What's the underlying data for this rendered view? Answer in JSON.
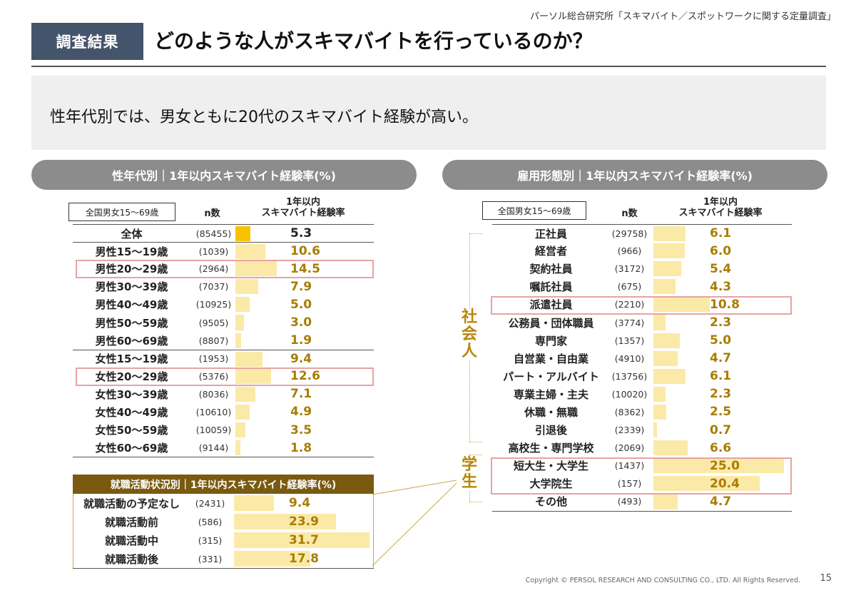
{
  "source": "パーソル総合研究所「スキマバイト／スポットワークに関する定量調査」",
  "tag": "調査結果",
  "headline": "どのような人がスキマバイトを行っているのか？",
  "summary": "性年代別では、男女ともに20代のスキマバイト経験が高い。",
  "left": {
    "pill": "性年代別｜1年以内スキマバイト経験率(%)",
    "region": "全国男女15～69歳",
    "n_header": "n数",
    "rate_header": "1年以内\nスキマバイト経験率",
    "rows": [
      {
        "label": "全体",
        "n": "(85455)",
        "value": "5.3"
      },
      {
        "label": "男性15～19歳",
        "n": "(1039)",
        "value": "10.6"
      },
      {
        "label": "男性20～29歳",
        "n": "(2964)",
        "value": "14.5"
      },
      {
        "label": "男性30～39歳",
        "n": "(7037)",
        "value": "7.9"
      },
      {
        "label": "男性40～49歳",
        "n": "(10925)",
        "value": "5.0"
      },
      {
        "label": "男性50～59歳",
        "n": "(9505)",
        "value": "3.0"
      },
      {
        "label": "男性60～69歳",
        "n": "(8807)",
        "value": "1.9"
      },
      {
        "label": "女性15～19歳",
        "n": "(1953)",
        "value": "9.4"
      },
      {
        "label": "女性20～29歳",
        "n": "(5376)",
        "value": "12.6"
      },
      {
        "label": "女性30～39歳",
        "n": "(8036)",
        "value": "7.1"
      },
      {
        "label": "女性40～49歳",
        "n": "(10610)",
        "value": "4.9"
      },
      {
        "label": "女性50～59歳",
        "n": "(10059)",
        "value": "3.5"
      },
      {
        "label": "女性60～69歳",
        "n": "(9144)",
        "value": "1.8"
      }
    ]
  },
  "job": {
    "title": "就職活動状況別｜1年以内スキマバイト経験率(%)",
    "rows": [
      {
        "label": "就職活動の予定なし",
        "n": "(2431)",
        "value": "9.4"
      },
      {
        "label": "就職活動前",
        "n": "(586)",
        "value": "23.9"
      },
      {
        "label": "就職活動中",
        "n": "(315)",
        "value": "31.7"
      },
      {
        "label": "就職活動後",
        "n": "(331)",
        "value": "17.8"
      }
    ]
  },
  "right": {
    "pill": "雇用形態別｜1年以内スキマバイト経験率(%)",
    "region": "全国男女15～69歳",
    "n_header": "n数",
    "rate_header": "1年以内\nスキマバイト経験率",
    "side_worker": "社会人",
    "side_student": "学生",
    "rows": [
      {
        "label": "正社員",
        "n": "(29758)",
        "value": "6.1"
      },
      {
        "label": "経営者",
        "n": "(966)",
        "value": "6.0"
      },
      {
        "label": "契約社員",
        "n": "(3172)",
        "value": "5.4"
      },
      {
        "label": "嘱託社員",
        "n": "(675)",
        "value": "4.3"
      },
      {
        "label": "派遣社員",
        "n": "(2210)",
        "value": "10.8"
      },
      {
        "label": "公務員・団体職員",
        "n": "(3774)",
        "value": "2.3"
      },
      {
        "label": "専門家",
        "n": "(1357)",
        "value": "5.0"
      },
      {
        "label": "自営業・自由業",
        "n": "(4910)",
        "value": "4.7"
      },
      {
        "label": "パート・アルバイト",
        "n": "(13756)",
        "value": "6.1"
      },
      {
        "label": "専業主婦・主夫",
        "n": "(10020)",
        "value": "2.3"
      },
      {
        "label": "休職・無職",
        "n": "(8362)",
        "value": "2.5"
      },
      {
        "label": "引退後",
        "n": "(2339)",
        "value": "0.7"
      },
      {
        "label": "高校生・専門学校",
        "n": "(2069)",
        "value": "6.6"
      },
      {
        "label": "短大生・大学生",
        "n": "(1437)",
        "value": "25.0"
      },
      {
        "label": "大学院生",
        "n": "(157)",
        "value": "20.4"
      },
      {
        "label": "その他",
        "n": "(493)",
        "value": "4.7"
      }
    ]
  },
  "footer": "Copyright © PERSOL RESEARCH AND CONSULTING CO., LTD. All Rights Reserved.",
  "page": "15",
  "colors": {
    "bar": "#fbe9a7",
    "bar_total": "#f9c200",
    "value": "#a77d00",
    "highlight": "#e8a3a3",
    "tag_bg": "#44546a"
  }
}
